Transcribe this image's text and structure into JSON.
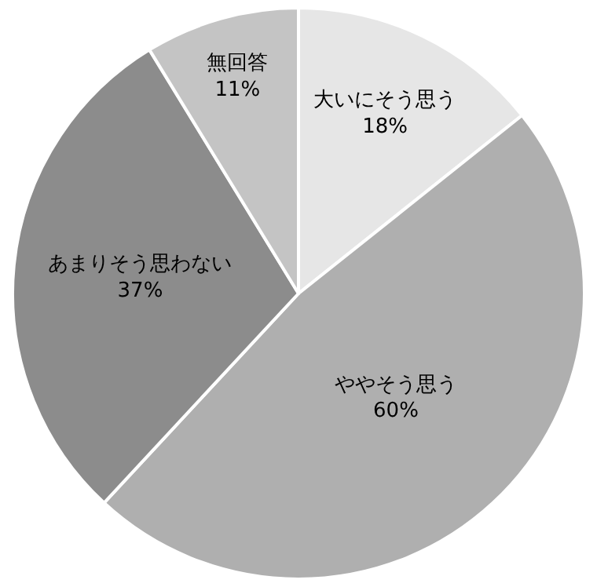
{
  "chart_data": {
    "type": "pie",
    "categories": [
      "大いにそう思う",
      "ややそう思う",
      "あまりそう思わない",
      "無回答"
    ],
    "values": [
      18,
      60,
      37,
      11
    ],
    "value_labels": [
      "18%",
      "60%",
      "37%",
      "11%"
    ],
    "colors": [
      "#e6e6e6",
      "#afafaf",
      "#8c8c8c",
      "#c4c4c4"
    ],
    "legend": false
  }
}
